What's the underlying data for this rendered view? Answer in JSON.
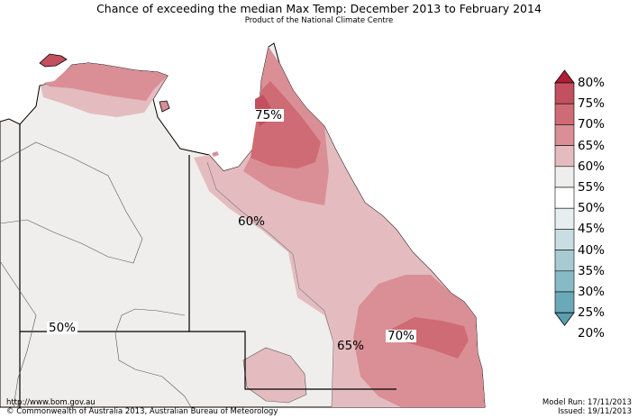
{
  "title": "Chance of exceeding the median Max Temp: December 2013 to February 2014",
  "subtitle": "Product of the National Climate Centre",
  "map_labels": [
    "75%",
    "60%",
    "50%",
    "65%",
    "70%"
  ],
  "legend": {
    "labels": [
      "80%",
      "75%",
      "70%",
      "65%",
      "60%",
      "55%",
      "50%",
      "45%",
      "40%",
      "35%",
      "30%",
      "25%",
      "20%"
    ],
    "colors": [
      "#b11d36",
      "#c2505f",
      "#cf6b74",
      "#d98f95",
      "#e4bcc0",
      "#efeeec",
      "#ffffff",
      "#e6eef0",
      "#c9dee2",
      "#a8cbd3",
      "#88bac6",
      "#6aa9b8",
      "#5a9fb0"
    ]
  },
  "footer": {
    "url": "http://www.bom.gov.au",
    "copyright": "©  Commonwealth of Australia 2013, Australian Bureau of Meteorology",
    "model_run": "Model Run: 17/11/2013",
    "issued": "Issued: 19/11/2013"
  }
}
